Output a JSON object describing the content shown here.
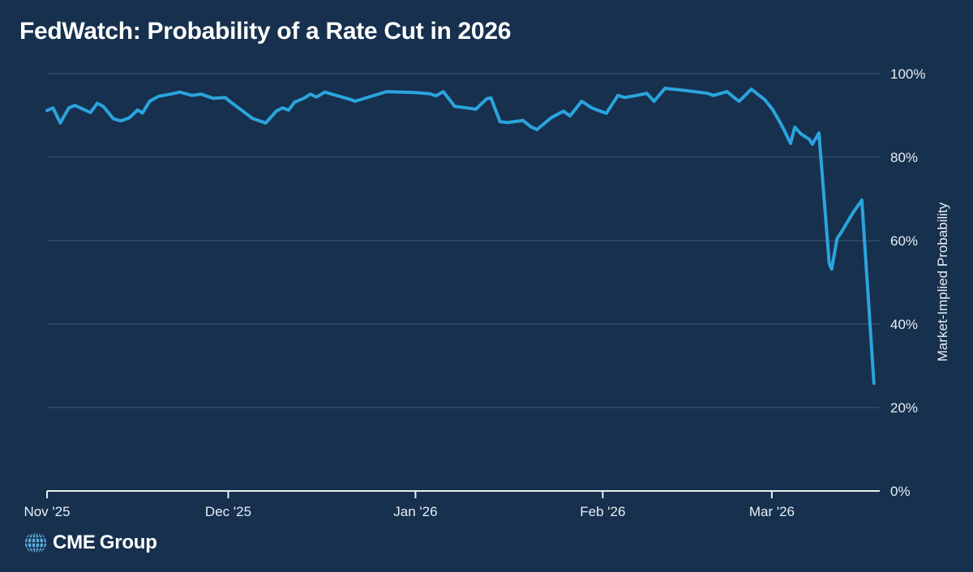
{
  "page": {
    "title": "FedWatch: Probability of a Rate Cut in 2026"
  },
  "footer": {
    "logo": {
      "brand_bold": "CME",
      "brand_regular": "Group"
    }
  },
  "colors": {
    "background": "#16304E",
    "line": "#2BA4DD",
    "title_text": "#FFFFFF",
    "tick_text": "#E9EEF3",
    "gridline": "rgba(214,226,240,0.22)",
    "axis": "#E9EEF3",
    "globe": "#5BAEDC"
  },
  "chart_data": {
    "type": "line",
    "title": "FedWatch: Probability of a Rate Cut in 2026",
    "xlabel": "",
    "ylabel": "Market-Implied Probability",
    "x_unit": "days since 2025-11-01",
    "x_domain": [
      0,
      138
    ],
    "x_ticks": [
      {
        "d": 0,
        "label": "Nov '25"
      },
      {
        "d": 30,
        "label": "Dec '25"
      },
      {
        "d": 61,
        "label": "Jan '26"
      },
      {
        "d": 92,
        "label": "Feb '26"
      },
      {
        "d": 120,
        "label": "Mar '26"
      }
    ],
    "ylim": [
      0,
      100
    ],
    "y_ticks": [
      {
        "v": 0,
        "label": "0%"
      },
      {
        "v": 20,
        "label": "20%"
      },
      {
        "v": 40,
        "label": "40%"
      },
      {
        "v": 60,
        "label": "60%"
      },
      {
        "v": 80,
        "label": "80%"
      },
      {
        "v": 100,
        "label": "100%"
      }
    ],
    "grid": "horizontal",
    "legend": "none",
    "series": [
      {
        "name": "Market-implied probability of a rate cut in 2026",
        "unit": "%",
        "points": [
          [
            0,
            91.2
          ],
          [
            1,
            91.8
          ],
          [
            2.2,
            88.2
          ],
          [
            3.6,
            91.8
          ],
          [
            4.6,
            92.4
          ],
          [
            6,
            91.5
          ],
          [
            7.2,
            90.7
          ],
          [
            8.3,
            92.9
          ],
          [
            9.3,
            92.2
          ],
          [
            11,
            89.2
          ],
          [
            12.2,
            88.7
          ],
          [
            13.6,
            89.4
          ],
          [
            15,
            91.3
          ],
          [
            15.8,
            90.6
          ],
          [
            17,
            93.4
          ],
          [
            18.5,
            94.6
          ],
          [
            20,
            95.0
          ],
          [
            22,
            95.6
          ],
          [
            24,
            94.8
          ],
          [
            25.5,
            95.1
          ],
          [
            27.5,
            94.1
          ],
          [
            29.5,
            94.3
          ],
          [
            30.5,
            93.1
          ],
          [
            32,
            91.5
          ],
          [
            34,
            89.3
          ],
          [
            36.2,
            88.2
          ],
          [
            38,
            91.1
          ],
          [
            39,
            91.8
          ],
          [
            40,
            91.3
          ],
          [
            41,
            93.2
          ],
          [
            42.5,
            94.1
          ],
          [
            43.6,
            95.1
          ],
          [
            44.6,
            94.4
          ],
          [
            46,
            95.6
          ],
          [
            50.3,
            93.8
          ],
          [
            51,
            93.4
          ],
          [
            56.2,
            95.7
          ],
          [
            61,
            95.5
          ],
          [
            63.4,
            95.2
          ],
          [
            64.4,
            94.7
          ],
          [
            65.6,
            95.7
          ],
          [
            67.5,
            92.2
          ],
          [
            69.5,
            91.8
          ],
          [
            71,
            91.5
          ],
          [
            72.8,
            94.0
          ],
          [
            73.5,
            94.2
          ],
          [
            75,
            88.5
          ],
          [
            76.2,
            88.3
          ],
          [
            78.8,
            88.8
          ],
          [
            80.1,
            87.3
          ],
          [
            81.1,
            86.6
          ],
          [
            83.5,
            89.5
          ],
          [
            85.5,
            91.0
          ],
          [
            86.6,
            89.9
          ],
          [
            88.5,
            93.4
          ],
          [
            90.2,
            91.8
          ],
          [
            92.6,
            90.5
          ],
          [
            94.5,
            94.8
          ],
          [
            95.6,
            94.3
          ],
          [
            97.6,
            94.8
          ],
          [
            99.3,
            95.3
          ],
          [
            100.5,
            93.4
          ],
          [
            102.3,
            96.5
          ],
          [
            105.6,
            96.0
          ],
          [
            109.4,
            95.3
          ],
          [
            110.3,
            94.8
          ],
          [
            112.6,
            95.7
          ],
          [
            114,
            94.0
          ],
          [
            114.6,
            93.4
          ],
          [
            116.6,
            96.3
          ],
          [
            118.8,
            93.8
          ],
          [
            120.1,
            91.5
          ],
          [
            121.3,
            88.5
          ],
          [
            122.0,
            86.6
          ],
          [
            123.1,
            83.3
          ],
          [
            123.8,
            87.2
          ],
          [
            124.8,
            85.6
          ],
          [
            126.2,
            84.3
          ],
          [
            126.7,
            83.1
          ],
          [
            127.8,
            85.8
          ],
          [
            129.5,
            54.5
          ],
          [
            129.9,
            53.2
          ],
          [
            130.8,
            60.5
          ],
          [
            131.5,
            62.0
          ],
          [
            133.4,
            66.6
          ],
          [
            134.9,
            69.7
          ],
          [
            136.9,
            25.8
          ]
        ]
      }
    ]
  }
}
